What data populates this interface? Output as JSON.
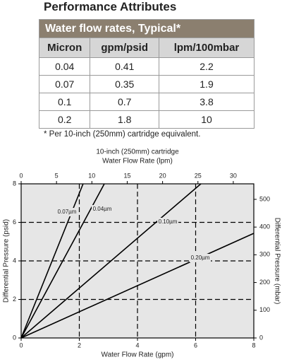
{
  "title": "Performance Attributes",
  "table": {
    "caption": "Water flow rates, Typical*",
    "columns": [
      "Micron",
      "gpm/psid",
      "lpm/100mbar"
    ],
    "rows": [
      [
        "0.04",
        "0.41",
        "2.2"
      ],
      [
        "0.07",
        "0.35",
        "1.9"
      ],
      [
        "0.1",
        "0.7",
        "3.8"
      ],
      [
        "0.2",
        "1.8",
        "10"
      ]
    ]
  },
  "footnote": "* Per 10-inch (250mm) cartridge equivalent.",
  "chart_data": {
    "type": "line",
    "title": "10-inch (250mm) cartridge",
    "x2label": "Water Flow Rate (lpm)",
    "xlabel": "Water Flow Rate (gpm)",
    "ylabel": "Differential Pressure (psid)",
    "y2label": "Differential Pressure (mbar)",
    "xlim": [
      0,
      8
    ],
    "xticks": [
      0,
      2,
      4,
      6,
      8
    ],
    "x2lim": [
      0,
      32.9
    ],
    "x2ticks": [
      0,
      5,
      10,
      15,
      20,
      25,
      30
    ],
    "ylim": [
      0,
      8
    ],
    "yticks": [
      0,
      2,
      4,
      6,
      8
    ],
    "y2lim": [
      0,
      556
    ],
    "y2ticks": [
      0,
      100,
      200,
      300,
      400,
      500
    ],
    "grid": true,
    "series": [
      {
        "name": "0.07µm",
        "color": "#000000",
        "x": [
          0,
          2.13
        ],
        "values": [
          0,
          8
        ]
      },
      {
        "name": "0.04µm",
        "color": "#000000",
        "x": [
          0,
          2.86
        ],
        "values": [
          0,
          8
        ]
      },
      {
        "name": "0.10µm",
        "color": "#000000",
        "x": [
          0,
          6.18
        ],
        "values": [
          0,
          8
        ]
      },
      {
        "name": "0.20µm",
        "color": "#000000",
        "x": [
          0,
          8
        ],
        "values": [
          0,
          5.43
        ]
      }
    ]
  }
}
